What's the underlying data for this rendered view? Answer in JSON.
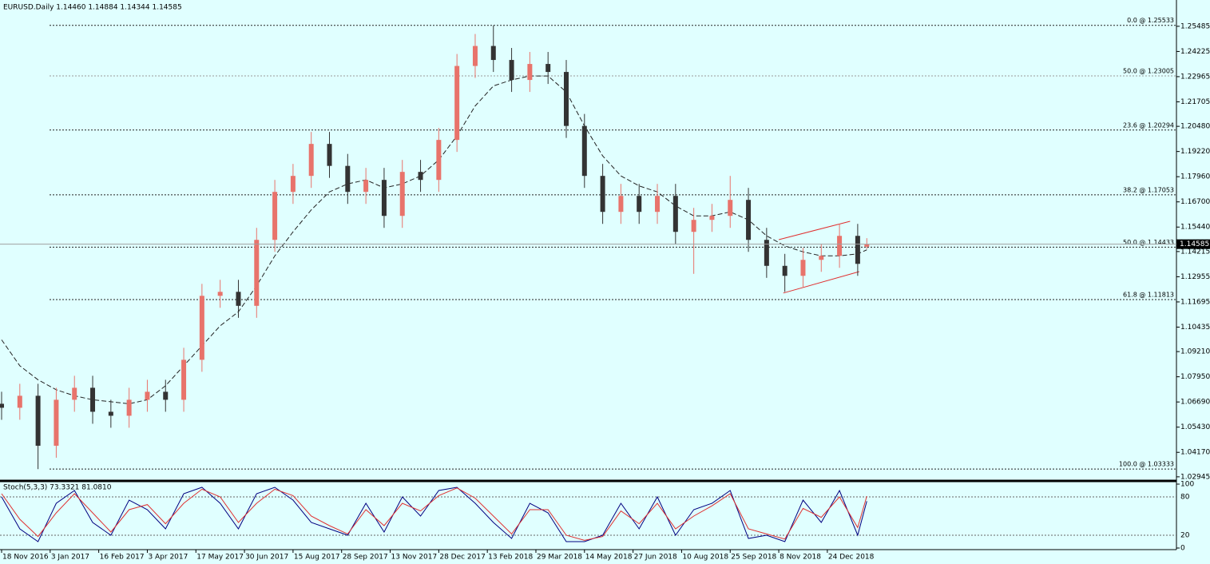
{
  "chart_data": [
    {
      "type": "candlestick",
      "title": "EURUSD.Daily  1.14460 1.14884 1.14344 1.14585",
      "x": [
        0,
        12,
        24,
        36,
        48,
        60,
        72,
        84,
        96,
        108,
        120,
        132,
        144,
        156,
        168,
        180,
        192,
        204,
        216,
        228,
        240,
        252,
        264,
        276,
        288,
        300,
        312,
        324,
        336,
        348,
        360,
        372,
        384,
        396,
        408,
        420,
        432,
        444,
        456,
        468,
        480,
        492,
        504,
        516,
        528,
        540,
        552,
        564,
        570
      ],
      "open": [
        1.066,
        1.064,
        1.07,
        1.045,
        1.068,
        1.074,
        1.062,
        1.06,
        1.068,
        1.072,
        1.068,
        1.088,
        1.12,
        1.122,
        1.115,
        1.148,
        1.172,
        1.18,
        1.196,
        1.185,
        1.172,
        1.178,
        1.16,
        1.182,
        1.178,
        1.198,
        1.235,
        1.245,
        1.238,
        1.228,
        1.236,
        1.232,
        1.205,
        1.18,
        1.162,
        1.17,
        1.162,
        1.17,
        1.152,
        1.158,
        1.16,
        1.168,
        1.148,
        1.135,
        1.13,
        1.138,
        1.14,
        1.15,
        1.1446
      ],
      "high": [
        1.072,
        1.076,
        1.076,
        1.074,
        1.08,
        1.08,
        1.068,
        1.074,
        1.078,
        1.078,
        1.094,
        1.126,
        1.128,
        1.128,
        1.154,
        1.178,
        1.186,
        1.202,
        1.202,
        1.191,
        1.184,
        1.184,
        1.188,
        1.188,
        1.204,
        1.241,
        1.251,
        1.2553,
        1.244,
        1.242,
        1.242,
        1.238,
        1.211,
        1.186,
        1.176,
        1.176,
        1.176,
        1.176,
        1.164,
        1.166,
        1.18,
        1.174,
        1.154,
        1.141,
        1.144,
        1.146,
        1.156,
        1.156,
        1.14884
      ],
      "low": [
        1.058,
        1.058,
        1.0333,
        1.039,
        1.062,
        1.056,
        1.054,
        1.054,
        1.062,
        1.062,
        1.062,
        1.082,
        1.114,
        1.109,
        1.109,
        1.142,
        1.166,
        1.174,
        1.179,
        1.166,
        1.166,
        1.154,
        1.154,
        1.172,
        1.172,
        1.192,
        1.229,
        1.232,
        1.222,
        1.222,
        1.226,
        1.199,
        1.174,
        1.156,
        1.156,
        1.156,
        1.156,
        1.146,
        1.131,
        1.152,
        1.154,
        1.142,
        1.129,
        1.122,
        1.124,
        1.132,
        1.134,
        1.13,
        1.14344
      ],
      "close": [
        1.064,
        1.07,
        1.045,
        1.068,
        1.074,
        1.062,
        1.06,
        1.068,
        1.072,
        1.068,
        1.088,
        1.12,
        1.122,
        1.115,
        1.148,
        1.172,
        1.18,
        1.196,
        1.185,
        1.172,
        1.178,
        1.16,
        1.182,
        1.178,
        1.198,
        1.235,
        1.245,
        1.238,
        1.228,
        1.236,
        1.232,
        1.205,
        1.18,
        1.162,
        1.17,
        1.162,
        1.17,
        1.152,
        1.158,
        1.16,
        1.168,
        1.148,
        1.135,
        1.13,
        1.138,
        1.14,
        1.15,
        1.136,
        1.14585
      ],
      "up_color": "#e8736b",
      "down_color": "#333333",
      "ma": {
        "values": [
          1.098,
          1.085,
          1.078,
          1.073,
          1.07,
          1.068,
          1.067,
          1.066,
          1.068,
          1.075,
          1.085,
          1.095,
          1.105,
          1.112,
          1.125,
          1.14,
          1.152,
          1.163,
          1.172,
          1.176,
          1.178,
          1.174,
          1.176,
          1.18,
          1.188,
          1.2,
          1.215,
          1.225,
          1.228,
          1.23,
          1.23,
          1.222,
          1.205,
          1.19,
          1.18,
          1.175,
          1.172,
          1.165,
          1.16,
          1.16,
          1.162,
          1.158,
          1.15,
          1.145,
          1.142,
          1.14,
          1.14,
          1.141,
          1.143
        ],
        "color": "#222222"
      },
      "levels": [
        {
          "value": 1.25533,
          "label": "0.0 @ 1.25533",
          "color": "#1a237e"
        },
        {
          "value": 1.23005,
          "label": "50.0 @ 1.23005",
          "color": "#9a9a9a"
        },
        {
          "value": 1.20294,
          "label": "23.6 @ 1.20294",
          "color": "#1a237e"
        },
        {
          "value": 1.17053,
          "label": "38.2 @ 1.17053",
          "color": "#1a237e"
        },
        {
          "value": 1.14433,
          "label": "50.0 @ 1.14433",
          "color": "#1a237e"
        },
        {
          "value": 1.11813,
          "label": "61.8 @ 1.11813",
          "color": "#1a237e"
        },
        {
          "value": 1.03333,
          "label": "100.0 @ 1.03333",
          "color": "#1a237e"
        }
      ],
      "trendlines": [
        {
          "x": [
            512,
            559
          ],
          "values": [
            1.1481,
            1.1573
          ]
        },
        {
          "x": [
            515,
            565
          ],
          "values": [
            1.1214,
            1.1321
          ]
        }
      ],
      "trend_color": "#e03030",
      "xlim": [
        0,
        774
      ],
      "ylim": [
        1.0282,
        1.2672
      ],
      "yticks": [
        {
          "value": 1.25485,
          "label": "1.25485"
        },
        {
          "value": 1.24225,
          "label": "1.24225"
        },
        {
          "value": 1.22965,
          "label": "1.22965"
        },
        {
          "value": 1.21705,
          "label": "1.21705"
        },
        {
          "value": 1.2048,
          "label": "1.20480"
        },
        {
          "value": 1.1922,
          "label": "1.19220"
        },
        {
          "value": 1.1796,
          "label": "1.17960"
        },
        {
          "value": 1.167,
          "label": "1.16700"
        },
        {
          "value": 1.1544,
          "label": "1.15440"
        },
        {
          "value": 1.14215,
          "label": "1.14215"
        },
        {
          "value": 1.12955,
          "label": "1.12955"
        },
        {
          "value": 1.11695,
          "label": "1.11695"
        },
        {
          "value": 1.10435,
          "label": "1.10435"
        },
        {
          "value": 1.0921,
          "label": "1.09210"
        },
        {
          "value": 1.0795,
          "label": "1.07950"
        },
        {
          "value": 1.0669,
          "label": "1.06690"
        },
        {
          "value": 1.0543,
          "label": "1.05430"
        },
        {
          "value": 1.0417,
          "label": "1.04170"
        },
        {
          "value": 1.02945,
          "label": "1.02945"
        }
      ],
      "xticks": [
        {
          "value": 0,
          "label": "18 Nov 2016"
        },
        {
          "value": 32,
          "label": "3 Jan 2017"
        },
        {
          "value": 64,
          "label": "16 Feb 2017"
        },
        {
          "value": 96,
          "label": "3 Apr 2017"
        },
        {
          "value": 128,
          "label": "17 May 2017"
        },
        {
          "value": 160,
          "label": "30 Jun 2017"
        },
        {
          "value": 192,
          "label": "15 Aug 2017"
        },
        {
          "value": 224,
          "label": "28 Sep 2017"
        },
        {
          "value": 256,
          "label": "13 Nov 2017"
        },
        {
          "value": 288,
          "label": "28 Dec 2017"
        },
        {
          "value": 320,
          "label": "13 Feb 2018"
        },
        {
          "value": 352,
          "label": "29 Mar 2018"
        },
        {
          "value": 384,
          "label": "14 May 2018"
        },
        {
          "value": 416,
          "label": "27 Jun 2018"
        },
        {
          "value": 448,
          "label": "10 Aug 2018"
        },
        {
          "value": 480,
          "label": "25 Sep 2018"
        },
        {
          "value": 512,
          "label": "8 Nov 2018"
        },
        {
          "value": 544,
          "label": "24 Dec 2018"
        }
      ]
    },
    {
      "type": "line",
      "title": "Stoch(5,3,3) 73.3321 81.0810",
      "x": [
        0,
        12,
        24,
        36,
        48,
        60,
        72,
        84,
        96,
        108,
        120,
        132,
        144,
        156,
        168,
        180,
        192,
        204,
        216,
        228,
        240,
        252,
        264,
        276,
        288,
        300,
        312,
        324,
        336,
        348,
        360,
        372,
        384,
        396,
        408,
        420,
        432,
        444,
        456,
        468,
        480,
        492,
        504,
        516,
        528,
        540,
        552,
        564,
        570
      ],
      "series": [
        {
          "color": "#000080",
          "values": [
            80,
            30,
            10,
            70,
            90,
            40,
            20,
            75,
            60,
            30,
            85,
            95,
            70,
            30,
            85,
            95,
            75,
            40,
            30,
            20,
            70,
            25,
            80,
            50,
            90,
            95,
            70,
            40,
            15,
            70,
            55,
            10,
            10,
            20,
            70,
            30,
            80,
            20,
            60,
            70,
            90,
            15,
            20,
            10,
            75,
            40,
            90,
            20,
            73.3321
          ]
        },
        {
          "color": "#e03030",
          "values": [
            85,
            45,
            18,
            55,
            85,
            55,
            25,
            60,
            68,
            38,
            70,
            92,
            80,
            40,
            70,
            92,
            82,
            50,
            35,
            22,
            60,
            35,
            70,
            58,
            82,
            94,
            78,
            50,
            22,
            60,
            60,
            20,
            12,
            18,
            58,
            38,
            70,
            30,
            50,
            66,
            85,
            30,
            22,
            14,
            62,
            48,
            80,
            32,
            81.081
          ]
        }
      ],
      "xlim": [
        0,
        774
      ],
      "ylim": [
        0,
        100
      ],
      "yticks": [
        0,
        20,
        80,
        100
      ]
    }
  ]
}
